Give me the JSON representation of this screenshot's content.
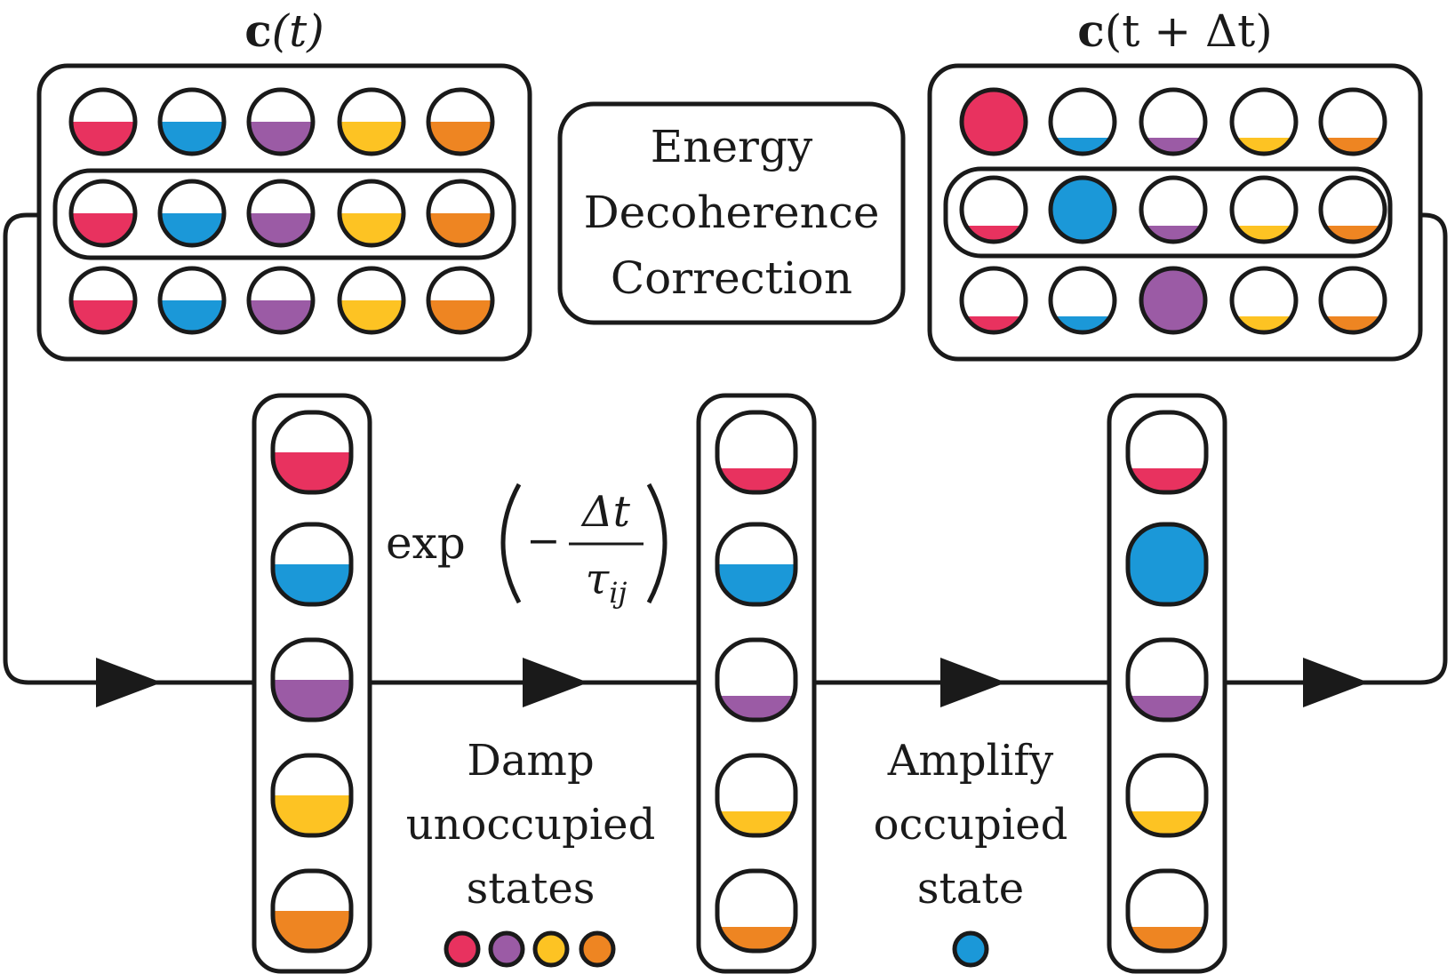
{
  "colors": {
    "red": "#e8325f",
    "blue": "#1b98d8",
    "purple": "#9b5ba5",
    "yellow": "#fdc323",
    "orange": "#ee8522",
    "stroke": "#1a1a1a"
  },
  "labels": {
    "ct": "c(t)",
    "ct_bold": "c",
    "ct_rest": "(t)",
    "ctdt_bold": "c",
    "ctdt_rest": "(t + Δt)",
    "energy": "Energy",
    "decoherence": "Decoherence",
    "correction": "Correction",
    "exp": "exp",
    "minus": "−",
    "numerator": "Δt",
    "denominator_tau": "τ",
    "denominator_sub": "ij",
    "damp1": "Damp",
    "damp2": "unoccupied",
    "damp3": "states",
    "amp1": "Amplify",
    "amp2": "occupied",
    "amp3": "state"
  },
  "state_order": [
    "red",
    "blue",
    "purple",
    "yellow",
    "orange"
  ],
  "grid_before_fill": [
    [
      0.5,
      0.5,
      0.5,
      0.5,
      0.5
    ],
    [
      0.5,
      0.5,
      0.5,
      0.5,
      0.5
    ],
    [
      0.5,
      0.5,
      0.5,
      0.5,
      0.5
    ]
  ],
  "grid_after_fill": [
    [
      1.0,
      0.25,
      0.25,
      0.25,
      0.25
    ],
    [
      0.25,
      1.0,
      0.25,
      0.25,
      0.25
    ],
    [
      0.25,
      0.25,
      1.0,
      0.25,
      0.25
    ]
  ],
  "column_fills": [
    [
      0.5,
      0.5,
      0.5,
      0.5,
      0.5
    ],
    [
      0.3,
      0.5,
      0.3,
      0.3,
      0.3
    ],
    [
      0.3,
      1.0,
      0.3,
      0.3,
      0.3
    ]
  ],
  "damped_legend": [
    "red",
    "purple",
    "yellow",
    "orange"
  ],
  "amplified_legend": [
    "blue"
  ]
}
